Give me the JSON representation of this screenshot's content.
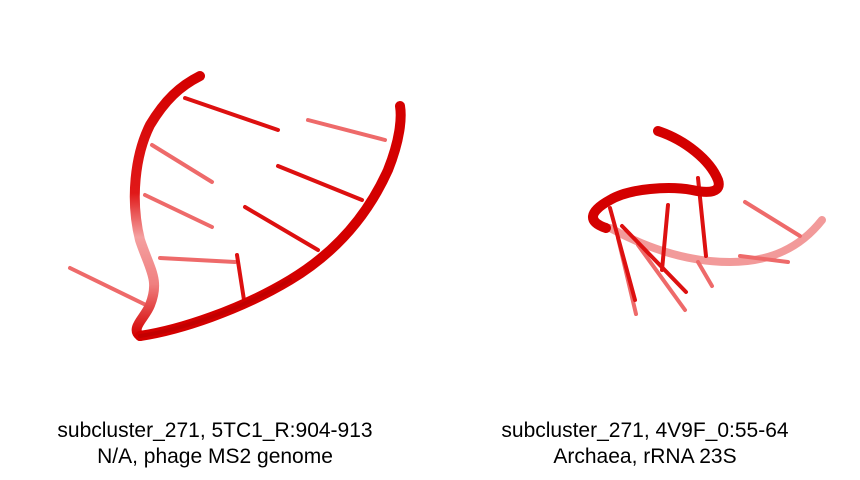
{
  "panels": [
    {
      "id": "left",
      "caption_line1": "subcluster_271, 5TC1_R:904-913",
      "caption_line2": "N/A, phage MS2 genome"
    },
    {
      "id": "right",
      "caption_line1": "subcluster_271, 4V9F_0:55-64",
      "caption_line2": "Archaea, rRNA 23S"
    }
  ],
  "colors": {
    "backbone": "#d40000",
    "backbone_dark": "#a80000",
    "backbone_faded": "#f08a8a",
    "base": "#dd1010",
    "base_faded": "#ee6a6a"
  }
}
